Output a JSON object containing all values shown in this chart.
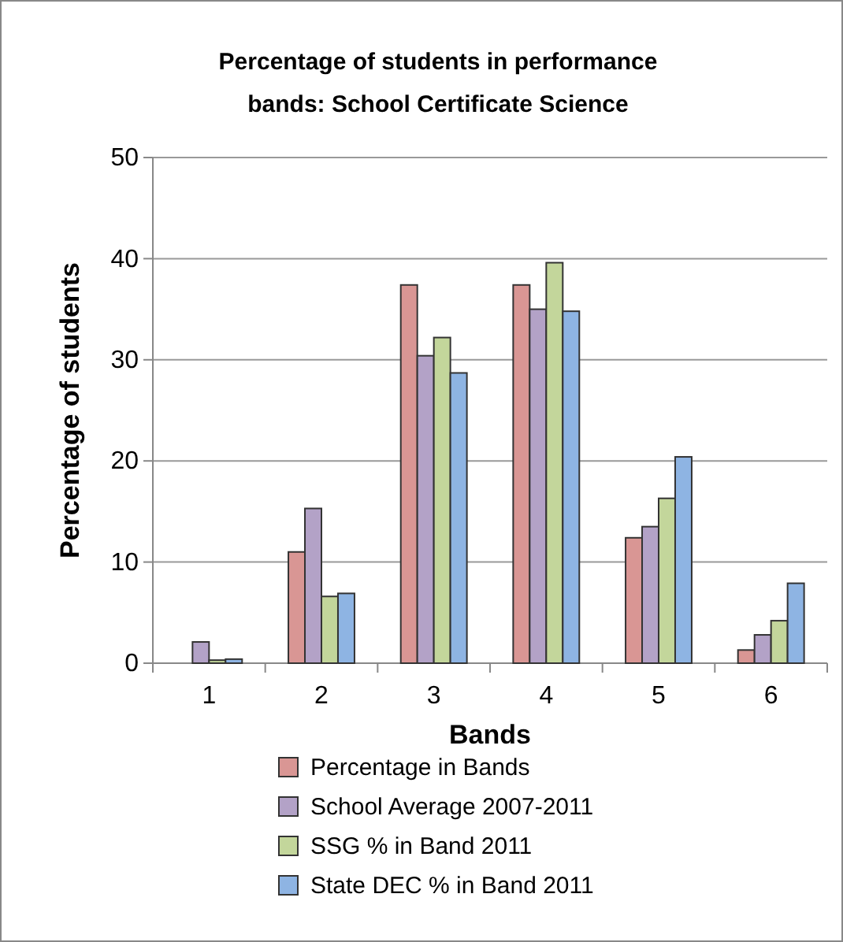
{
  "chart_data": {
    "type": "bar",
    "title": "Percentage of students in performance bands: School Certificate Science",
    "xlabel": "Bands",
    "ylabel": "Percentage of students",
    "categories": [
      "1",
      "2",
      "3",
      "4",
      "5",
      "6"
    ],
    "series": [
      {
        "name": "Percentage in Bands",
        "color": "#d99694",
        "values": [
          0,
          11.0,
          37.4,
          37.4,
          12.4,
          1.3
        ]
      },
      {
        "name": "School Average 2007-2011",
        "color": "#b3a2c7",
        "values": [
          2.1,
          15.3,
          30.4,
          35.0,
          13.5,
          2.8
        ]
      },
      {
        "name": "SSG % in Band 2011",
        "color": "#c3d69b",
        "values": [
          0.3,
          6.6,
          32.2,
          39.6,
          16.3,
          4.2
        ]
      },
      {
        "name": "State DEC % in Band 2011",
        "color": "#8eb4e3",
        "values": [
          0.4,
          6.9,
          28.7,
          34.8,
          20.4,
          7.9
        ]
      }
    ],
    "ylim": [
      0,
      50
    ],
    "yticks": [
      0,
      10,
      20,
      30,
      40,
      50
    ],
    "grid": "y",
    "legend": "bottom"
  }
}
